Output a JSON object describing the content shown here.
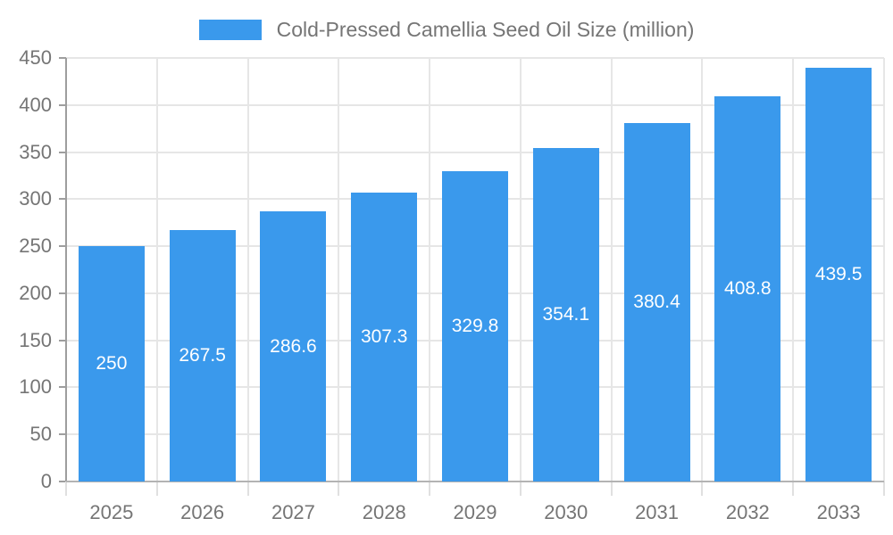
{
  "legend": {
    "label": "Cold-Pressed Camellia Seed Oil Size (million)",
    "swatch_color": "#3a99ec"
  },
  "chart_data": {
    "type": "bar",
    "title": "Cold-Pressed Camellia Seed Oil Size (million)",
    "categories": [
      "2025",
      "2026",
      "2027",
      "2028",
      "2029",
      "2030",
      "2031",
      "2032",
      "2033"
    ],
    "series": [
      {
        "name": "Cold-Pressed Camellia Seed Oil Size (million)",
        "values": [
          250,
          267.5,
          286.6,
          307.3,
          329.8,
          354.1,
          380.4,
          408.8,
          439.5
        ]
      }
    ],
    "xlabel": "",
    "ylabel": "",
    "ylim": [
      0,
      450
    ],
    "ytick_step": 50,
    "yticks": [
      0,
      50,
      100,
      150,
      200,
      250,
      300,
      350,
      400,
      450
    ],
    "grid": true,
    "legend_position": "top",
    "bar_color": "#3a99ec",
    "value_label_color": "#ffffff",
    "axis_text_color": "#757575",
    "gridline_color": "#e6e6e6"
  }
}
